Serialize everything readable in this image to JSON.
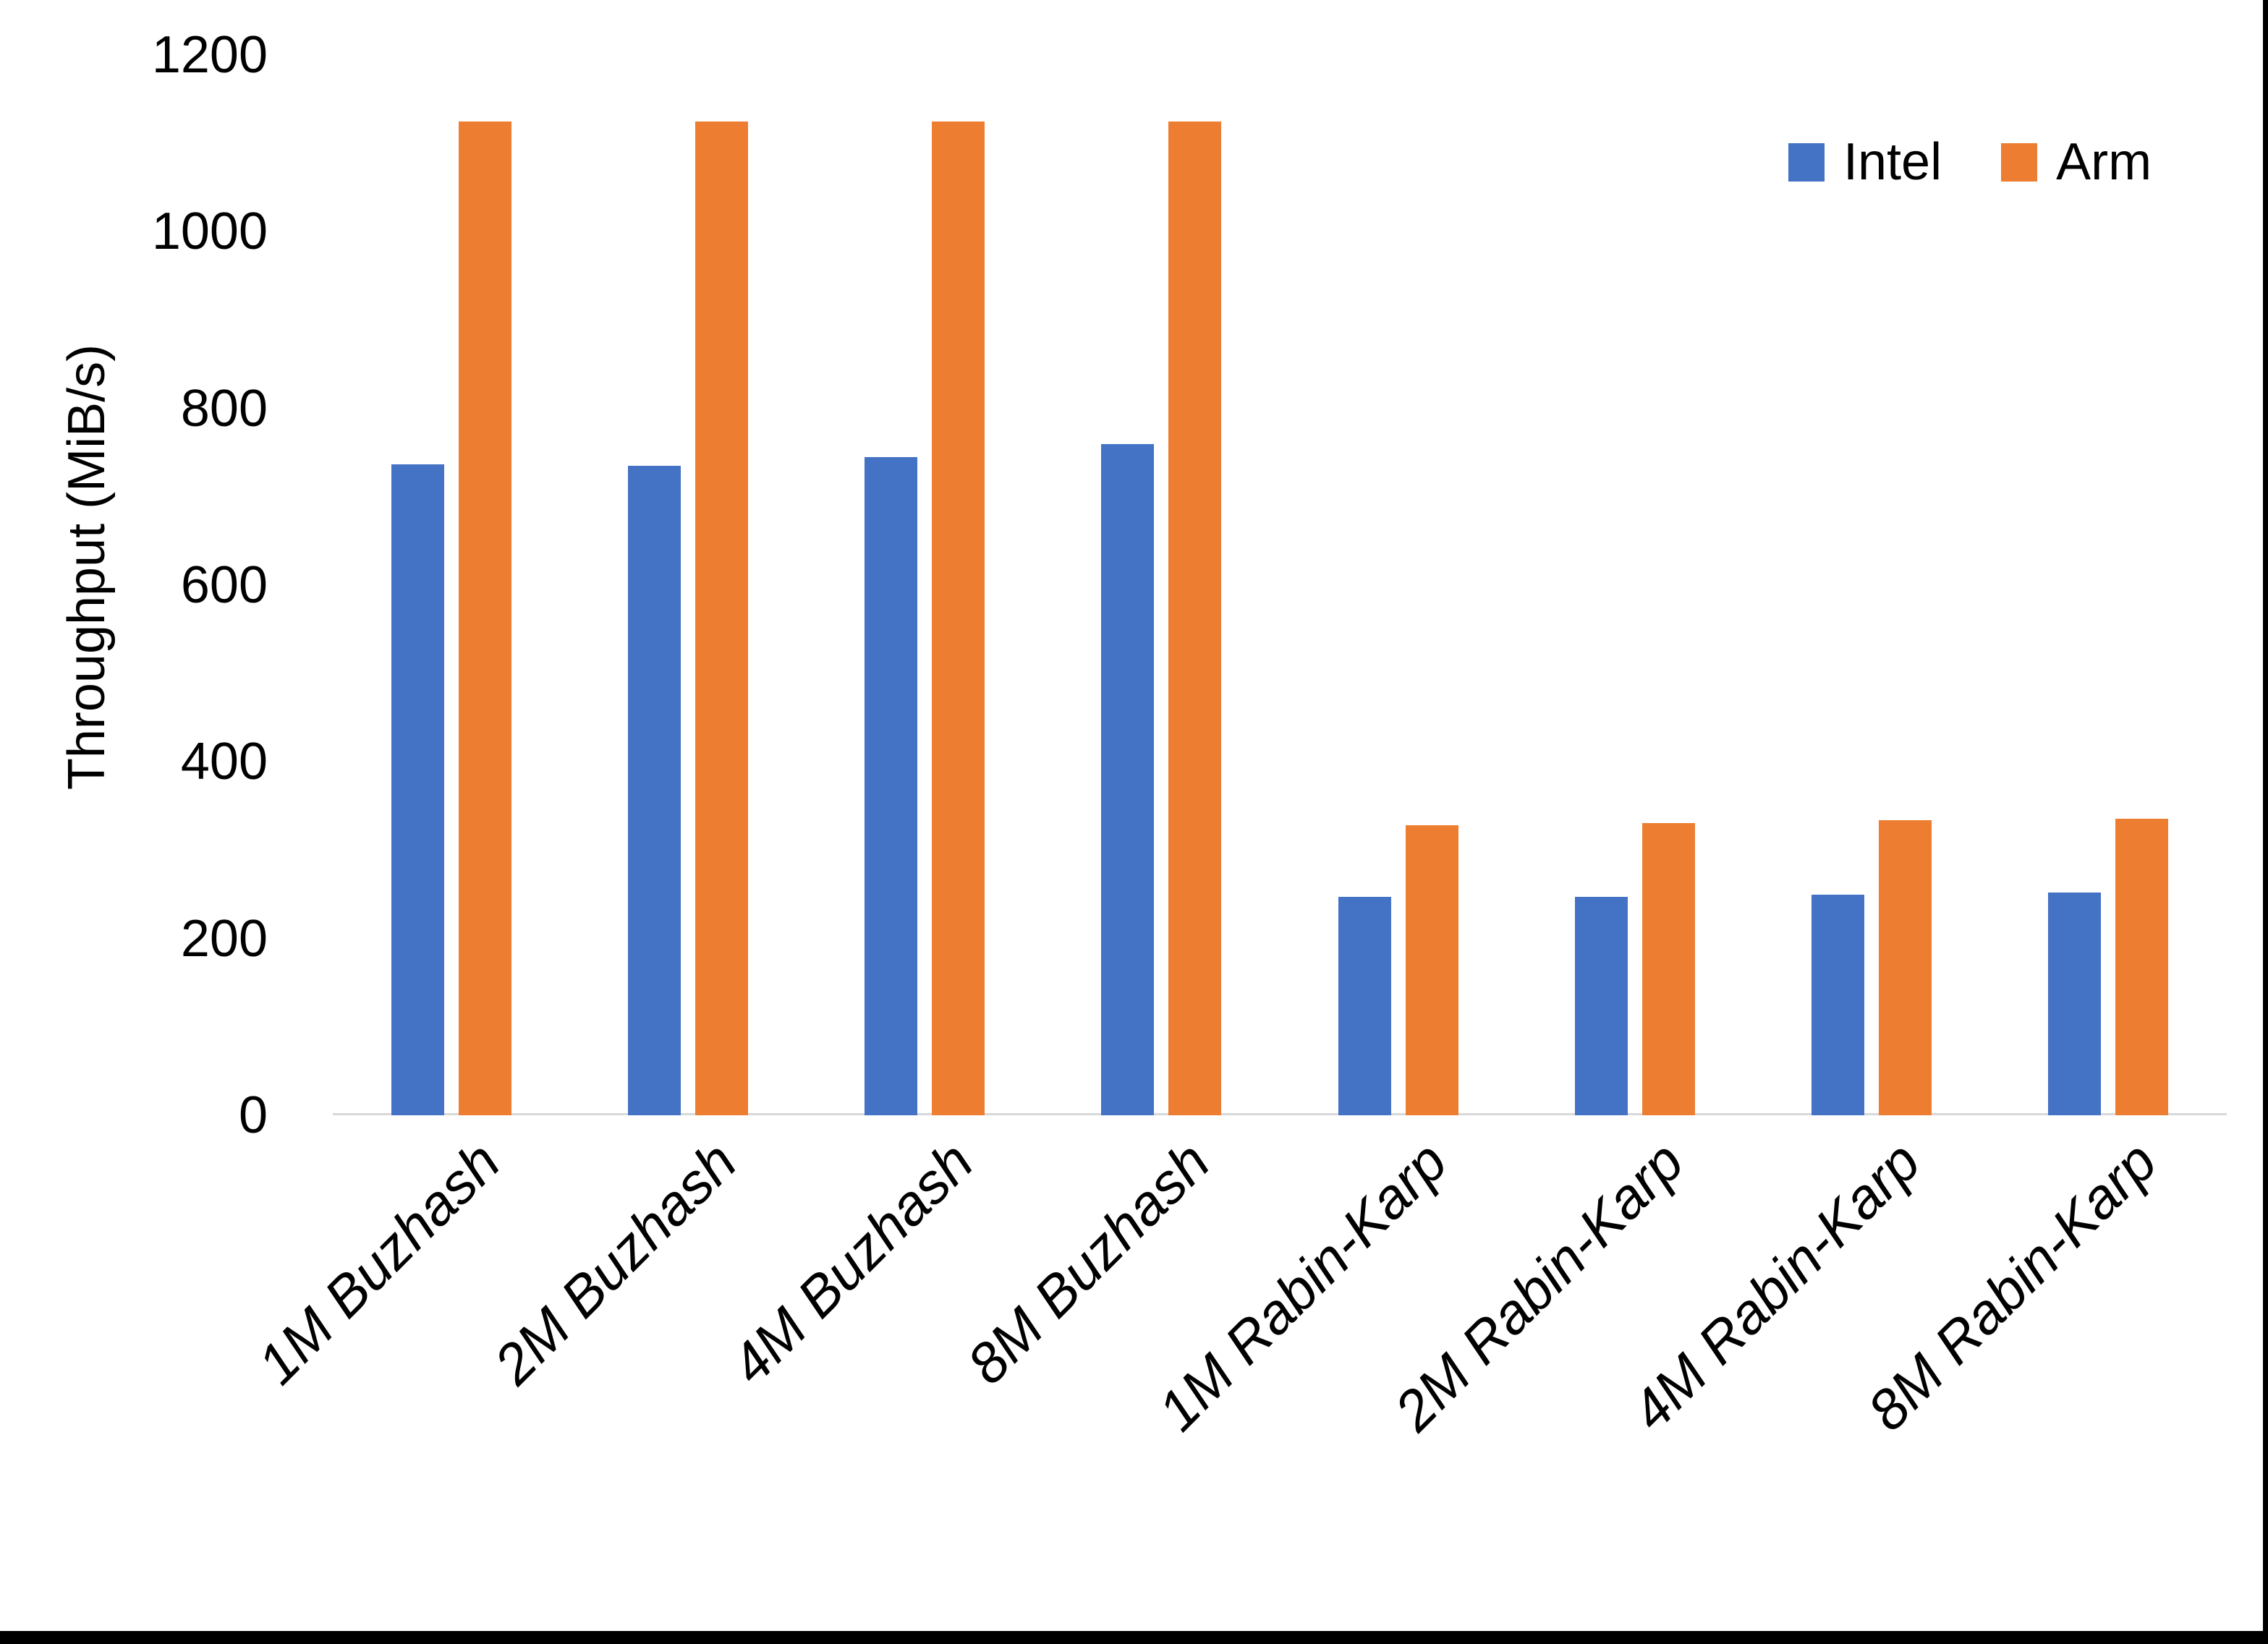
{
  "page": {
    "background": "#ffffff",
    "border_color": "#000000"
  },
  "chart_data": {
    "type": "bar",
    "title": "",
    "xlabel": "",
    "ylabel": "Throughput (MiB/s)",
    "ylim": [
      0,
      1200
    ],
    "yticks": [
      0,
      200,
      400,
      600,
      800,
      1000,
      1200
    ],
    "grid": false,
    "legend_position": "top-right",
    "axis_line_color": "#D9D9D9",
    "categories": [
      "1M Buzhash",
      "2M Buzhash",
      "4M Buzhash",
      "8M Buzhash",
      "1M Rabin-Karp",
      "2M Rabin-Karp",
      "4M Rabin-Karp",
      "8M Rabin-Karp"
    ],
    "series": [
      {
        "name": "Intel",
        "color": "#4472C4",
        "values": [
          737,
          735,
          745,
          760,
          247,
          247,
          250,
          252
        ]
      },
      {
        "name": "Arm",
        "color": "#ED7D31",
        "values": [
          1125,
          1125,
          1125,
          1125,
          328,
          331,
          334,
          336
        ]
      }
    ]
  }
}
